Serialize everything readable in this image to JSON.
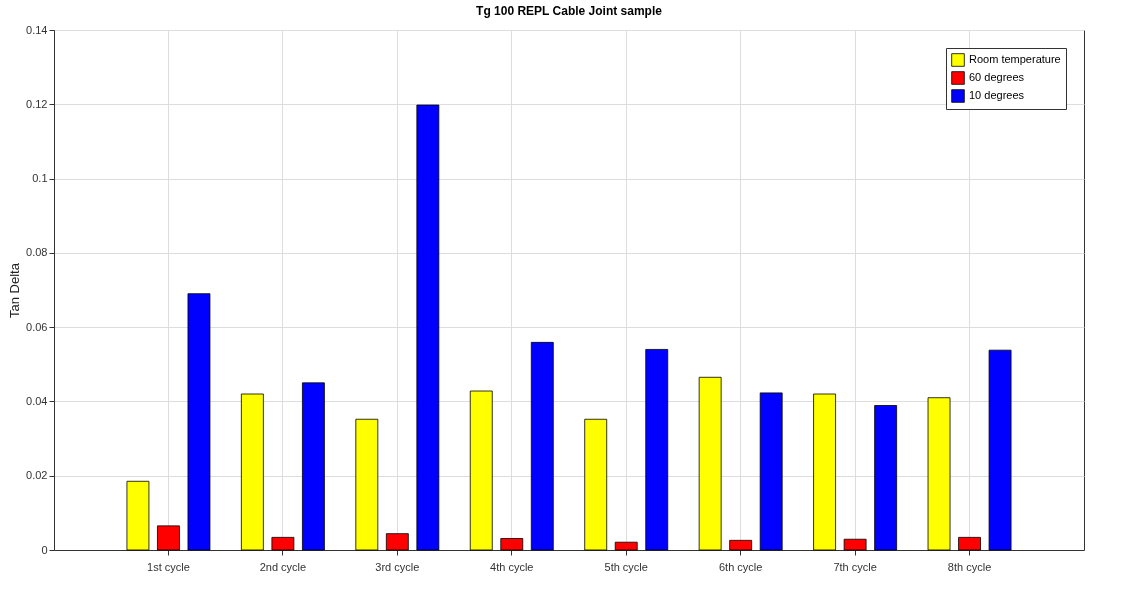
{
  "chart_data": {
    "type": "bar",
    "title": "Tg 100 REPL Cable Joint sample",
    "ylabel": "Tan Delta",
    "categories": [
      "1st cycle",
      "2nd cycle",
      "3rd cycle",
      "4th cycle",
      "5th cycle",
      "6th cycle",
      "7th cycle",
      "8th cycle"
    ],
    "series": [
      {
        "name": "Room temperature",
        "color": "#ffff00",
        "values": [
          0.0185,
          0.042,
          0.0352,
          0.0428,
          0.0352,
          0.0465,
          0.042,
          0.041
        ]
      },
      {
        "name": "60 degrees",
        "color": "#ff0000",
        "values": [
          0.0065,
          0.0034,
          0.0044,
          0.0031,
          0.0021,
          0.0026,
          0.0029,
          0.0034
        ]
      },
      {
        "name": "10 degrees",
        "color": "#0000ff",
        "values": [
          0.069,
          0.045,
          0.1198,
          0.0559,
          0.054,
          0.0423,
          0.0389,
          0.0538
        ]
      }
    ],
    "ylim": [
      0,
      0.14
    ],
    "yticks": [
      0,
      0.02,
      0.04,
      0.06,
      0.08,
      0.1,
      0.12,
      0.14
    ],
    "grid": true,
    "legend": "top right"
  }
}
